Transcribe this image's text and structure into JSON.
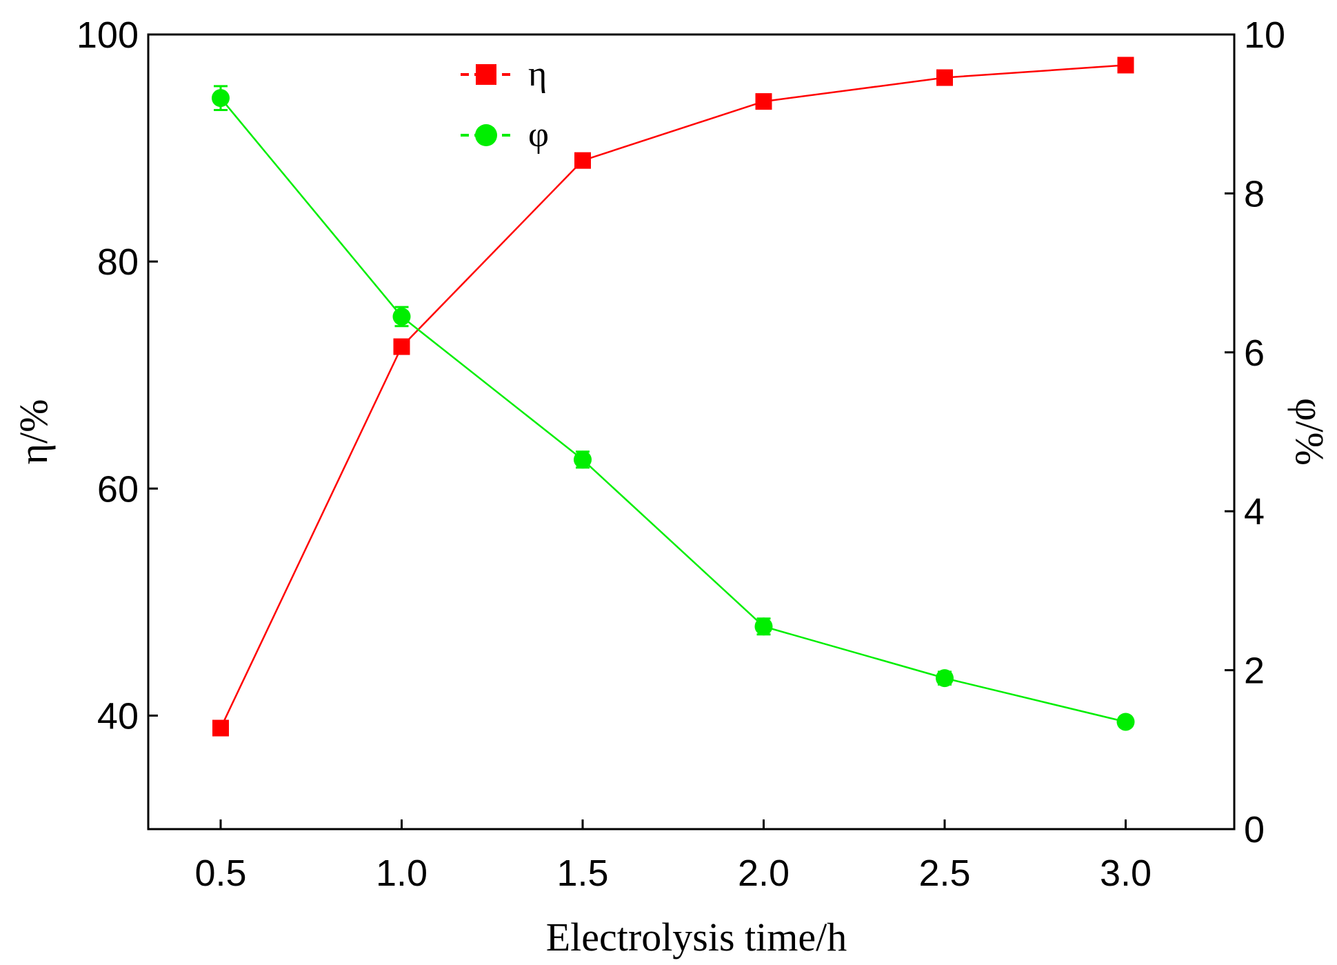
{
  "chart_data": {
    "type": "line",
    "title": "",
    "xlabel": "Electrolysis time/h",
    "ylabel_left": "η/%",
    "ylabel_right": "φ/%",
    "x": [
      0.5,
      1.0,
      1.5,
      2.0,
      2.5,
      3.0
    ],
    "x_tick_labels": [
      "0.5",
      "1.0",
      "1.5",
      "2.0",
      "2.5",
      "3.0"
    ],
    "xlim": [
      0.3,
      3.3
    ],
    "ylim_left": [
      30,
      100
    ],
    "ylim_right": [
      0,
      10
    ],
    "y_ticks_left": [
      40,
      60,
      80,
      100
    ],
    "y_ticks_right": [
      0,
      2,
      4,
      6,
      8,
      10
    ],
    "grid": false,
    "legend_position": "top-center",
    "series": [
      {
        "name": "η",
        "axis": "left",
        "color": "#ff0000",
        "marker": "square",
        "values": [
          38.9,
          72.5,
          88.9,
          94.1,
          96.2,
          97.3
        ],
        "errors": [
          0.4,
          0.6,
          0.5,
          0.5,
          0.4,
          0.5
        ]
      },
      {
        "name": "φ",
        "axis": "right",
        "color": "#00ee00",
        "marker": "circle",
        "values": [
          9.2,
          6.45,
          4.65,
          2.55,
          1.9,
          1.35
        ],
        "errors": [
          0.15,
          0.12,
          0.1,
          0.1,
          0.08,
          0.05
        ]
      }
    ]
  }
}
